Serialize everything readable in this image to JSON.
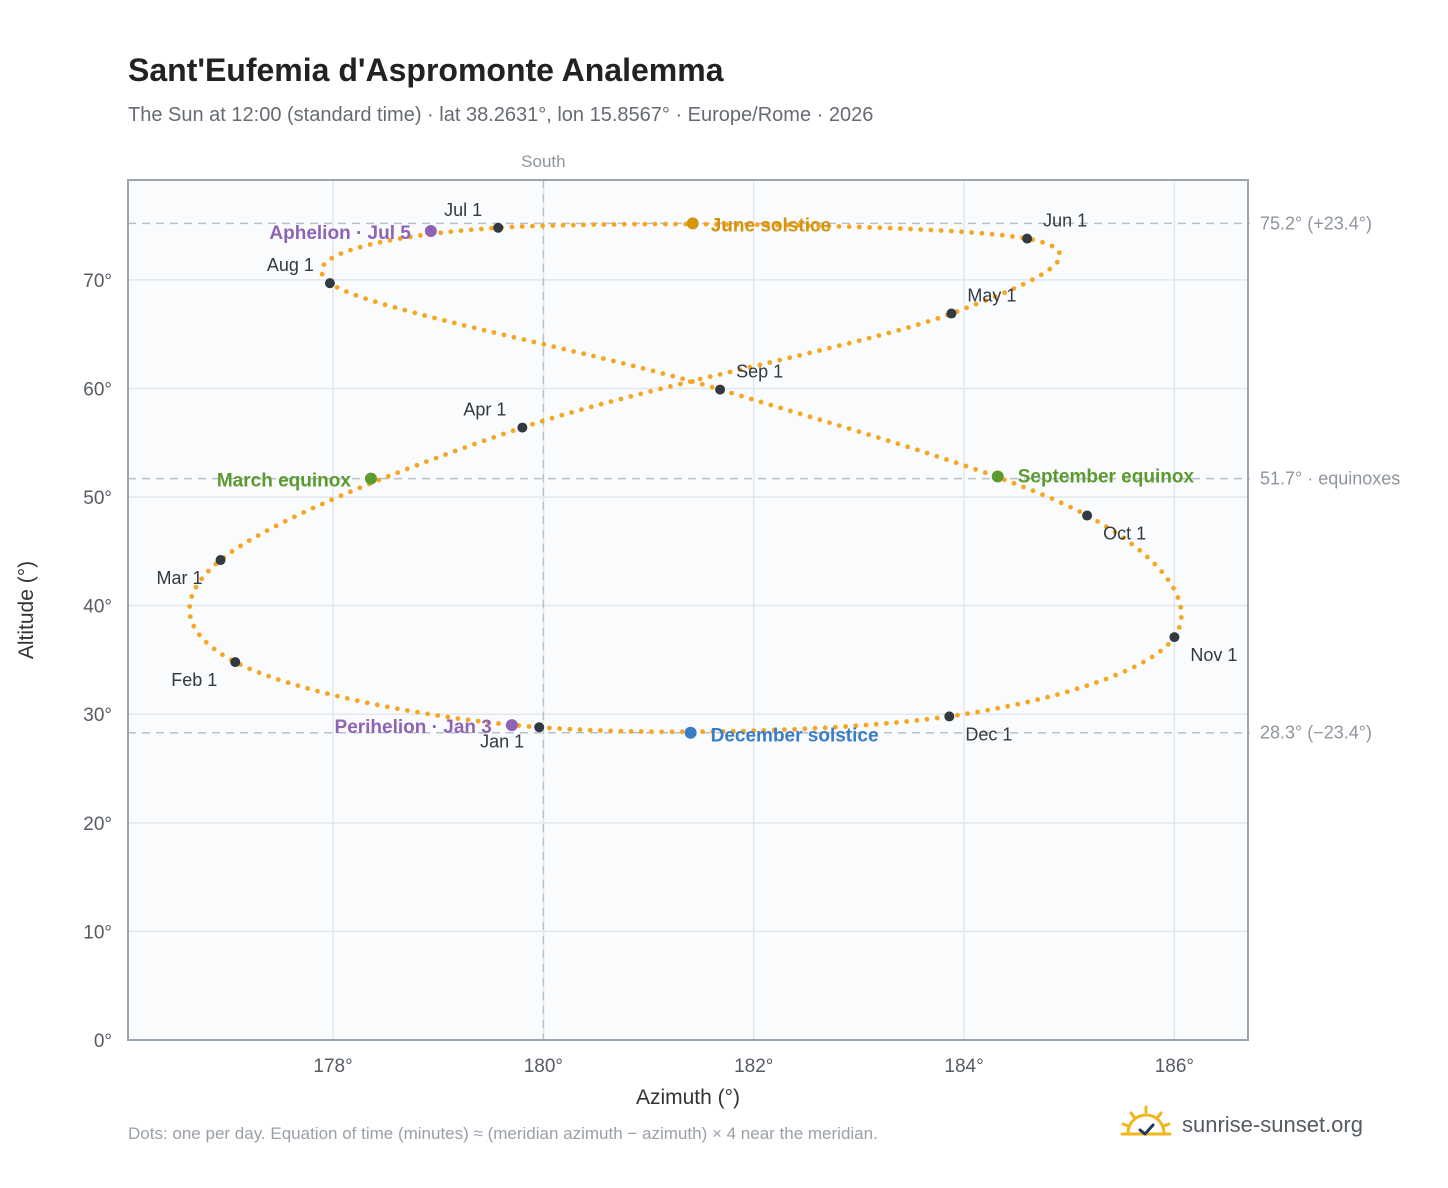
{
  "title": "Sant'Eufemia d'Aspromonte Analemma",
  "subtitle": "The Sun at 12:00 (standard time) · lat 38.2631°, lon 15.8567° · Europe/Rome · 2026",
  "footnote": "Dots: one per day. Equation of time (minutes) ≈ (meridian azimuth − azimuth) × 4 near the meridian.",
  "brand": {
    "text": "sunrise-sunset.org",
    "icon": "sun-logo-icon"
  },
  "chart_data": {
    "type": "scatter",
    "title": "Sant'Eufemia d'Aspromonte Analemma",
    "xlabel": "Azimuth (°)",
    "ylabel": "Altitude (°)",
    "xlim": [
      176.05,
      186.7
    ],
    "ylim": [
      0,
      79.2
    ],
    "xticks": [
      178,
      180,
      182,
      184,
      186
    ],
    "xtick_labels": [
      "178°",
      "180°",
      "182°",
      "184°",
      "186°"
    ],
    "yticks": [
      0,
      10,
      20,
      30,
      40,
      50,
      60,
      70
    ],
    "ytick_labels": [
      "0°",
      "10°",
      "20°",
      "30°",
      "40°",
      "50°",
      "60°",
      "70°"
    ],
    "grid": true,
    "meridian": {
      "x": 180,
      "label": "South"
    },
    "reference_lines": [
      {
        "y": 75.2,
        "label": "75.2° (+23.4°)"
      },
      {
        "y": 51.7,
        "label": "51.7° · equinoxes"
      },
      {
        "y": 28.3,
        "label": "28.3° (−23.4°)"
      }
    ],
    "series": [
      {
        "marker": "dot",
        "color": "#f5a623",
        "points": [
          {
            "x": 179.96,
            "y": 28.8
          },
          {
            "x": 177.07,
            "y": 34.8
          },
          {
            "x": 176.93,
            "y": 44.2
          },
          {
            "x": 179.8,
            "y": 56.4
          },
          {
            "x": 183.88,
            "y": 66.9
          },
          {
            "x": 184.6,
            "y": 73.8
          },
          {
            "x": 179.57,
            "y": 74.8
          },
          {
            "x": 177.97,
            "y": 69.7
          },
          {
            "x": 181.68,
            "y": 59.9
          },
          {
            "x": 185.17,
            "y": 48.3
          },
          {
            "x": 186.0,
            "y": 37.1
          },
          {
            "x": 183.86,
            "y": 29.8
          },
          {
            "x": 179.96,
            "y": 28.8
          }
        ]
      }
    ],
    "month_markers": [
      {
        "label": "Jan 1",
        "x": 179.96,
        "y": 28.8
      },
      {
        "label": "Feb 1",
        "x": 177.07,
        "y": 34.8
      },
      {
        "label": "Mar 1",
        "x": 176.93,
        "y": 44.2
      },
      {
        "label": "Apr 1",
        "x": 179.8,
        "y": 56.4
      },
      {
        "label": "May 1",
        "x": 183.88,
        "y": 66.9
      },
      {
        "label": "Jun 1",
        "x": 184.6,
        "y": 73.8
      },
      {
        "label": "Jul 1",
        "x": 179.57,
        "y": 74.8
      },
      {
        "label": "Aug 1",
        "x": 177.97,
        "y": 69.7
      },
      {
        "label": "Sep 1",
        "x": 181.68,
        "y": 59.9
      },
      {
        "label": "Oct 1",
        "x": 185.17,
        "y": 48.3
      },
      {
        "label": "Nov 1",
        "x": 186.0,
        "y": 37.1
      },
      {
        "label": "Dec 1",
        "x": 183.86,
        "y": 29.8
      }
    ],
    "events": [
      {
        "label": "June solstice",
        "x": 181.42,
        "y": 75.2,
        "color": "#d4940e"
      },
      {
        "label": "December solstice",
        "x": 181.4,
        "y": 28.3,
        "color": "#3a7cc7"
      },
      {
        "label": "March equinox",
        "x": 178.36,
        "y": 51.7,
        "color": "#5a9a2e"
      },
      {
        "label": "September equinox",
        "x": 184.32,
        "y": 51.9,
        "color": "#5a9a2e"
      },
      {
        "label": "Aphelion · Jul 5",
        "x": 178.93,
        "y": 74.5,
        "color": "#8e63b5"
      },
      {
        "label": "Perihelion · Jan 3",
        "x": 179.7,
        "y": 29.0,
        "color": "#8e63b5"
      }
    ]
  }
}
